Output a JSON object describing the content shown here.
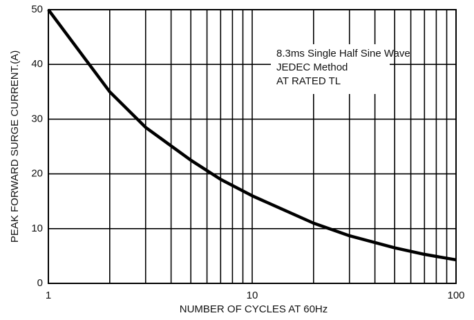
{
  "chart_data": {
    "type": "line",
    "xlabel": "NUMBER OF CYCLES AT 60Hz",
    "ylabel": "PEAK FORWARD SURGE CURRENT.(A)",
    "annotations": [
      "8.3ms Single Half Sine Wave",
      "JEDEC Method",
      "AT RATED TL"
    ],
    "x": [
      1,
      2,
      3,
      5,
      7,
      10,
      20,
      30,
      50,
      70,
      100
    ],
    "series": [
      {
        "color": "#000000",
        "values": [
          50,
          35,
          28.5,
          22.5,
          19,
          16,
          11,
          8.7,
          6.5,
          5.3,
          4.3
        ]
      }
    ],
    "xscale": "log",
    "xlim": [
      1,
      100
    ],
    "xticks": [
      1,
      10,
      100
    ],
    "xminor_ticks": [
      2,
      3,
      4,
      5,
      6,
      7,
      8,
      9,
      20,
      30,
      40,
      50,
      60,
      70,
      80,
      90
    ],
    "ylim": [
      0,
      50
    ],
    "yticks": [
      0,
      10,
      20,
      30,
      40,
      50
    ],
    "grid": true
  }
}
